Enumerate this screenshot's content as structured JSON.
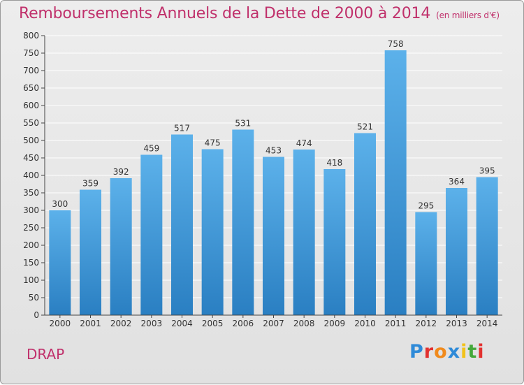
{
  "header": {
    "title": "Remboursements Annuels de la Dette de 2000 à 2014",
    "subtitle": "(en milliers d'€)"
  },
  "footer": {
    "commune": "DRAP",
    "logo": "Proxiti"
  },
  "chart_data": {
    "type": "bar",
    "title": "Remboursements Annuels de la Dette de 2000 à 2014",
    "subtitle": "(en milliers d'€)",
    "categories": [
      "2000",
      "2001",
      "2002",
      "2003",
      "2004",
      "2005",
      "2006",
      "2007",
      "2008",
      "2009",
      "2010",
      "2011",
      "2012",
      "2013",
      "2014"
    ],
    "values": [
      300,
      359,
      392,
      459,
      517,
      475,
      531,
      453,
      474,
      418,
      521,
      758,
      295,
      364,
      395
    ],
    "data_labels": [
      "300",
      "359",
      "392",
      "459",
      "517",
      "475",
      "531",
      "453",
      "474",
      "418",
      "521",
      "758",
      "295",
      "364",
      "395"
    ],
    "ylim": [
      0,
      800
    ],
    "yticks": [
      0,
      50,
      100,
      150,
      200,
      250,
      300,
      350,
      400,
      450,
      500,
      550,
      600,
      650,
      700,
      750,
      800
    ],
    "grid": true,
    "bar_color": "#3d97db",
    "title_color": "#c0306b"
  }
}
